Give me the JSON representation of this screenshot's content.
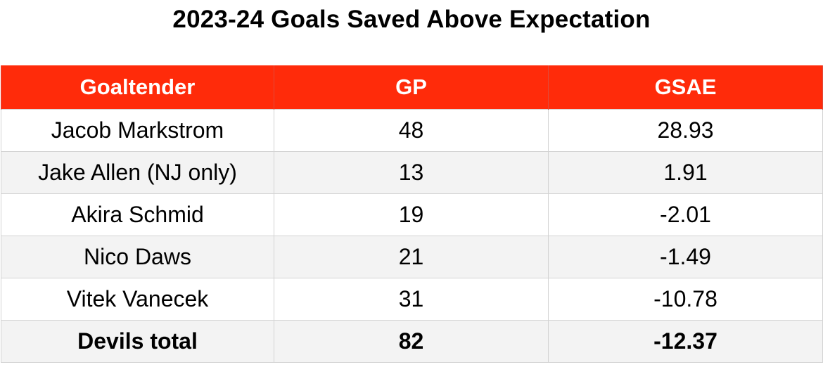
{
  "title": "2023-24 Goals Saved Above Expectation",
  "table": {
    "headers": [
      "Goaltender",
      "GP",
      "GSAE"
    ],
    "rows": [
      {
        "goaltender": "Jacob Markstrom",
        "gp": "48",
        "gsae": "28.93"
      },
      {
        "goaltender": "Jake Allen (NJ only)",
        "gp": "13",
        "gsae": "1.91"
      },
      {
        "goaltender": "Akira Schmid",
        "gp": "19",
        "gsae": "-2.01"
      },
      {
        "goaltender": "Nico Daws",
        "gp": "21",
        "gsae": "-1.49"
      },
      {
        "goaltender": "Vitek Vanecek",
        "gp": "31",
        "gsae": "-10.78"
      }
    ],
    "total": {
      "goaltender": "Devils total",
      "gp": "82",
      "gsae": "-12.37"
    }
  },
  "colors": {
    "header_background": "#ff2b0a",
    "header_text": "#ffffff",
    "row_stripe": "#f3f3f3",
    "grid_line": "#d3d3d3"
  }
}
